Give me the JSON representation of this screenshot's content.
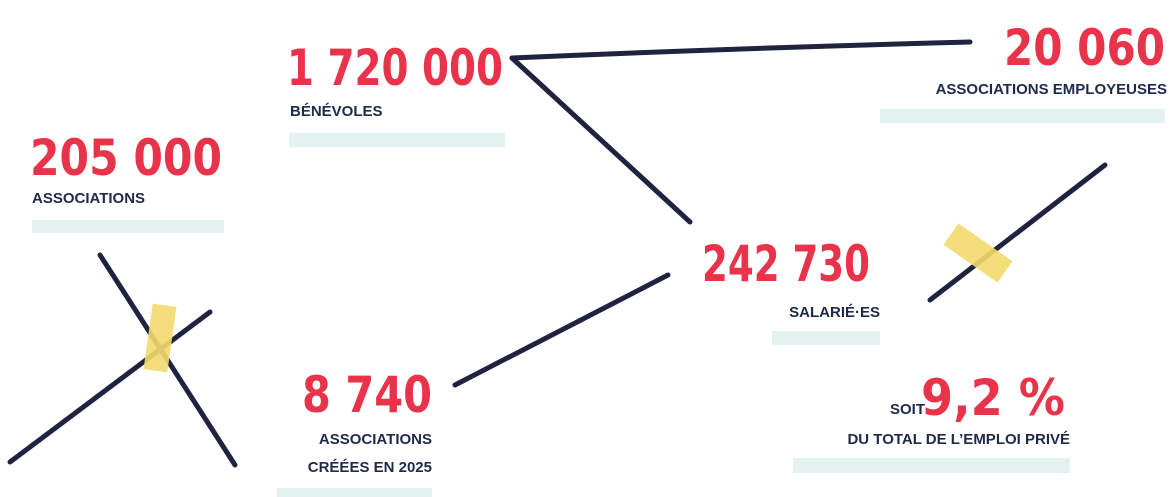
{
  "stats": [
    {
      "number": "205 000",
      "label": "ASSOCIATIONS"
    },
    {
      "number": "1 720 000",
      "label": "BÉNÉVOLES"
    },
    {
      "number": "20 060",
      "label": "ASSOCIATIONS EMPLOYEUSES"
    },
    {
      "number": "242 730",
      "label": "SALARIÉ·ES"
    },
    {
      "number": "8 740",
      "label_lines": [
        "ASSOCIATIONS",
        "CRÉÉES EN 2025"
      ]
    },
    {
      "prefix": "SOIT",
      "number": "9,2 %",
      "label": "DU TOTAL DE L’EMPLOI PRIVÉ"
    }
  ]
}
